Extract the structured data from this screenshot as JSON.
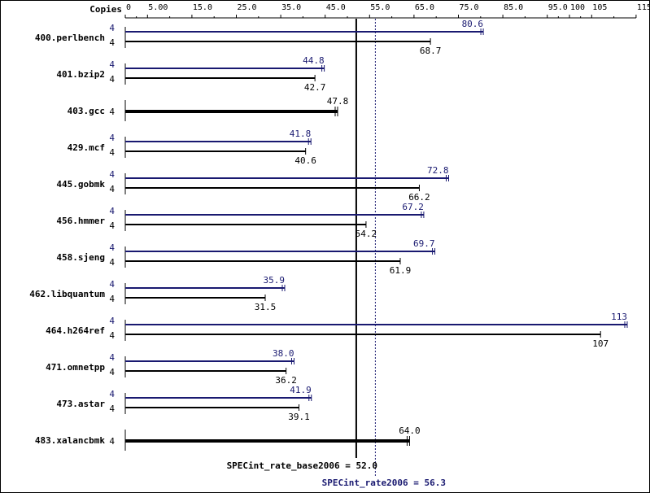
{
  "chart_data": {
    "type": "bar",
    "title": "",
    "copies_header": "Copies",
    "axis_ticks": [
      "0",
      "5.00",
      "15.0",
      "25.0",
      "35.0",
      "45.0",
      "55.0",
      "65.0",
      "75.0",
      "85.0",
      "95.0",
      "100",
      "105",
      "115"
    ],
    "xlim": [
      0,
      115
    ],
    "colors": {
      "peak": "#191970",
      "base": "#000000"
    },
    "rows": [
      {
        "benchmark": "400.perlbench",
        "copies": "4",
        "peak": 80.6,
        "peak_label": "80.6",
        "base": 68.7,
        "base_label": "68.7"
      },
      {
        "benchmark": "401.bzip2",
        "copies": "4",
        "peak": 44.8,
        "peak_label": "44.8",
        "base": 42.7,
        "base_label": "42.7"
      },
      {
        "benchmark": "403.gcc",
        "copies": "4",
        "single": 47.8,
        "single_label": "47.8"
      },
      {
        "benchmark": "429.mcf",
        "copies": "4",
        "peak": 41.8,
        "peak_label": "41.8",
        "base": 40.6,
        "base_label": "40.6"
      },
      {
        "benchmark": "445.gobmk",
        "copies": "4",
        "peak": 72.8,
        "peak_label": "72.8",
        "base": 66.2,
        "base_label": "66.2"
      },
      {
        "benchmark": "456.hmmer",
        "copies": "4",
        "peak": 67.2,
        "peak_label": "67.2",
        "base": 54.2,
        "base_label": "54.2"
      },
      {
        "benchmark": "458.sjeng",
        "copies": "4",
        "peak": 69.7,
        "peak_label": "69.7",
        "base": 61.9,
        "base_label": "61.9"
      },
      {
        "benchmark": "462.libquantum",
        "copies": "4",
        "peak": 35.9,
        "peak_label": "35.9",
        "base": 31.5,
        "base_label": "31.5"
      },
      {
        "benchmark": "464.h264ref",
        "copies": "4",
        "peak": 113,
        "peak_label": "113",
        "base": 107,
        "base_label": "107"
      },
      {
        "benchmark": "471.omnetpp",
        "copies": "4",
        "peak": 38.0,
        "peak_label": "38.0",
        "base": 36.2,
        "base_label": "36.2"
      },
      {
        "benchmark": "473.astar",
        "copies": "4",
        "peak": 41.9,
        "peak_label": "41.9",
        "base": 39.1,
        "base_label": "39.1"
      },
      {
        "benchmark": "483.xalancbmk",
        "copies": "4",
        "single": 64.0,
        "single_label": "64.0"
      }
    ],
    "base_metric": {
      "label": "SPECint_rate_base2006 = 52.0",
      "value": 52.0
    },
    "peak_metric": {
      "label": "SPECint_rate2006 = 56.3",
      "value": 56.3
    }
  }
}
